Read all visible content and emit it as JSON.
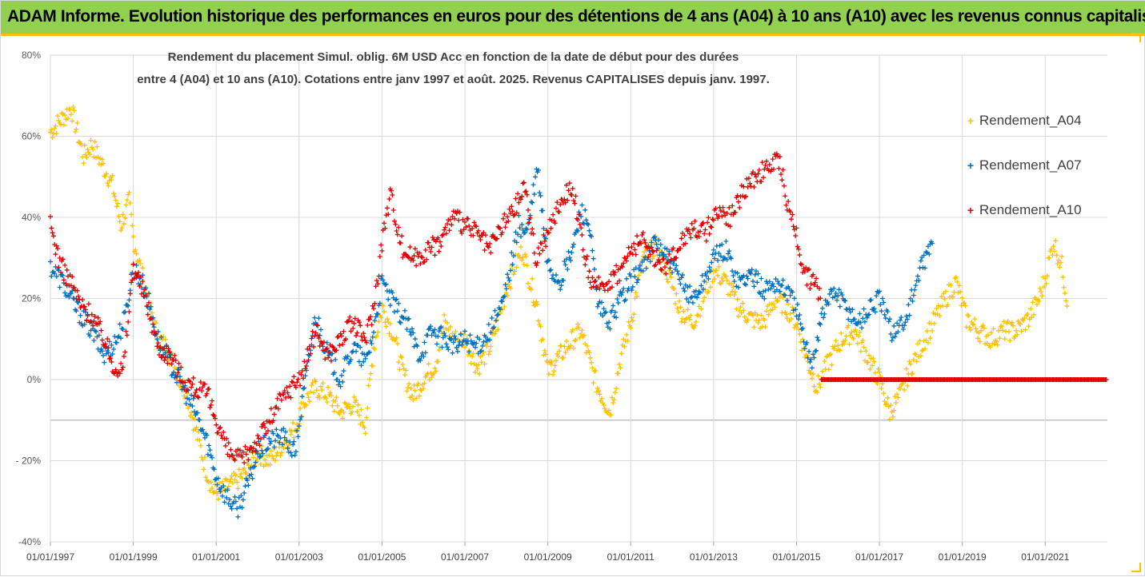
{
  "banner": {
    "title": "ADAM Informe. Evolution historique des performances en euros pour des détentions de 4 ans (A04) à 10 ans (A10) avec les revenus connus capitalisés"
  },
  "chart_data": {
    "type": "scatter",
    "title_line1": "Rendement du placement Simul. oblig. 6M USD Acc en fonction de la date de début pour des durées",
    "title_line2": "entre 4 (A04) et 10 ans (A10). Cotations entre janv 1997 et août. 2025. Revenus CAPITALISES depuis janv. 1997.",
    "xlabel": "",
    "ylabel": "",
    "x_range": [
      "1997-01-01",
      "2022-06-30"
    ],
    "y_range": [
      -40,
      80
    ],
    "y_unit": "%",
    "y_ticks": [
      "80%",
      "60%",
      "40%",
      "20%",
      "0%",
      "- 20%",
      "-40%"
    ],
    "y_tick_values": [
      80,
      60,
      40,
      20,
      0,
      -20,
      -40
    ],
    "x_ticks": [
      "01/01/1997",
      "01/01/1999",
      "01/01/2001",
      "01/01/2003",
      "01/01/2005",
      "01/01/2007",
      "01/01/2009",
      "01/01/2011",
      "01/01/2013",
      "01/01/2015",
      "01/01/2017",
      "01/01/2019",
      "01/01/2021"
    ],
    "x_tick_values": [
      1997,
      1999,
      2001,
      2003,
      2005,
      2007,
      2009,
      2011,
      2013,
      2015,
      2017,
      2019,
      2021
    ],
    "grid": "horizontal",
    "legend_position": "right",
    "series": [
      {
        "name": "Rendement_A04",
        "color": "#ffc000",
        "x": [
          1997.0,
          1997.25,
          1997.5,
          1997.8,
          1998.0,
          1998.3,
          1998.5,
          1998.7,
          1998.9,
          1999.0,
          1999.3,
          1999.6,
          1999.8,
          2000.0,
          2000.3,
          2000.5,
          2000.75,
          2000.95,
          2001.2,
          2001.5,
          2001.8,
          2002.0,
          2002.3,
          2002.6,
          2002.9,
          2003.1,
          2003.4,
          2003.7,
          2004.0,
          2004.3,
          2004.6,
          2004.8,
          2005.0,
          2005.25,
          2005.5,
          2005.75,
          2006.0,
          2006.3,
          2006.5,
          2006.75,
          2007.0,
          2007.3,
          2007.6,
          2007.8,
          2008.0,
          2008.2,
          2008.4,
          2008.55,
          2008.75,
          2009.0,
          2009.3,
          2009.6,
          2009.8,
          2010.0,
          2010.2,
          2010.5,
          2010.75,
          2011.0,
          2011.3,
          2011.6,
          2011.9,
          2012.2,
          2012.5,
          2012.75,
          2013.0,
          2013.3,
          2013.6,
          2013.9,
          2014.2,
          2014.5,
          2014.75,
          2015.0,
          2015.25,
          2015.5,
          2015.8,
          2016.1,
          2016.4,
          2016.7,
          2017.0,
          2017.25,
          2017.5,
          2017.75,
          2018.0,
          2018.3,
          2018.6,
          2018.85,
          2019.1,
          2019.4,
          2019.7,
          2020.0,
          2020.3,
          2020.6,
          2020.85,
          2021.0,
          2021.2,
          2021.4,
          2021.55
        ],
        "values": [
          61,
          64,
          67,
          55,
          58,
          52,
          48,
          38,
          44,
          35,
          22,
          10,
          8,
          3,
          -4,
          -12,
          -22,
          -28,
          -27,
          -25,
          -22,
          -18,
          -20,
          -16,
          -12,
          -6,
          -2,
          -4,
          -8,
          -6,
          -11,
          8,
          18,
          12,
          2,
          -4,
          0,
          4,
          14,
          10,
          10,
          3,
          8,
          14,
          22,
          28,
          32,
          25,
          18,
          2,
          6,
          10,
          12,
          5,
          -2,
          -8,
          5,
          14,
          30,
          33,
          26,
          17,
          14,
          20,
          27,
          24,
          18,
          15,
          14,
          20,
          18,
          14,
          5,
          -2,
          5,
          10,
          12,
          6,
          0,
          -8,
          -4,
          3,
          8,
          14,
          20,
          24,
          15,
          12,
          10,
          12,
          12,
          15,
          20,
          25,
          34,
          28,
          18
        ]
      },
      {
        "name": "Rendement_A07",
        "color": "#0070c0",
        "x": [
          1997.0,
          1997.3,
          1997.6,
          1998.0,
          1998.3,
          1998.6,
          1998.8,
          1999.0,
          1999.3,
          1999.6,
          1999.9,
          2000.2,
          2000.5,
          2000.8,
          2001.0,
          2001.2,
          2001.5,
          2001.8,
          2002.0,
          2002.3,
          2002.6,
          2002.9,
          2003.1,
          2003.4,
          2003.7,
          2004.0,
          2004.3,
          2004.6,
          2004.8,
          2005.0,
          2005.3,
          2005.6,
          2005.9,
          2006.2,
          2006.5,
          2006.8,
          2007.0,
          2007.3,
          2007.6,
          2007.9,
          2008.1,
          2008.3,
          2008.5,
          2008.75,
          2009.0,
          2009.3,
          2009.6,
          2009.8,
          2010.0,
          2010.2,
          2010.5,
          2010.75,
          2011.0,
          2011.3,
          2011.6,
          2011.9,
          2012.2,
          2012.5,
          2012.75,
          2013.0,
          2013.3,
          2013.6,
          2013.9,
          2014.2,
          2014.5,
          2014.75,
          2015.0,
          2015.2,
          2015.4,
          2015.6,
          2015.9,
          2016.2,
          2016.5,
          2016.8,
          2017.0,
          2017.3,
          2017.6,
          2017.9,
          2018.1,
          2018.3
        ],
        "values": [
          28,
          24,
          18,
          12,
          6,
          10,
          15,
          28,
          22,
          10,
          4,
          -2,
          -8,
          -16,
          -24,
          -28,
          -32,
          -25,
          -18,
          -15,
          -14,
          -18,
          -4,
          16,
          6,
          0,
          8,
          4,
          12,
          24,
          18,
          14,
          6,
          12,
          10,
          8,
          10,
          8,
          12,
          18,
          28,
          38,
          36,
          52,
          28,
          24,
          32,
          42,
          38,
          18,
          14,
          20,
          24,
          28,
          34,
          30,
          24,
          20,
          24,
          30,
          32,
          24,
          26,
          22,
          24,
          22,
          18,
          8,
          5,
          16,
          22,
          18,
          14,
          18,
          20,
          12,
          14,
          24,
          30,
          34
        ]
      },
      {
        "name": "Rendement_A10",
        "color": "#e00000",
        "x": [
          1997.0,
          1997.25,
          1997.5,
          1997.75,
          1998.0,
          1998.3,
          1998.5,
          1998.75,
          1999.0,
          1999.3,
          1999.6,
          1999.9,
          2000.2,
          2000.5,
          2000.8,
          2001.0,
          2001.3,
          2001.6,
          2001.9,
          2002.2,
          2002.5,
          2002.8,
          2003.1,
          2003.4,
          2003.7,
          2004.0,
          2004.3,
          2004.6,
          2004.8,
          2005.0,
          2005.2,
          2005.5,
          2005.8,
          2006.1,
          2006.4,
          2006.7,
          2007.0,
          2007.3,
          2007.6,
          2007.9,
          2008.2,
          2008.45,
          2008.7,
          2009.0,
          2009.3,
          2009.6,
          2009.85,
          2010.1,
          2010.4,
          2010.7,
          2011.0,
          2011.3,
          2011.6,
          2011.9,
          2012.2,
          2012.5,
          2012.8,
          2013.1,
          2013.4,
          2013.7,
          2014.0,
          2014.3,
          2014.6,
          2014.8,
          2015.0,
          2015.2,
          2015.4,
          2015.6
        ],
        "values": [
          38,
          28,
          24,
          18,
          16,
          10,
          4,
          2,
          28,
          20,
          8,
          6,
          0,
          -2,
          -4,
          -10,
          -18,
          -20,
          -16,
          -12,
          -6,
          -2,
          2,
          12,
          6,
          10,
          14,
          10,
          18,
          34,
          46,
          32,
          30,
          32,
          34,
          40,
          38,
          36,
          32,
          38,
          42,
          48,
          30,
          36,
          44,
          48,
          32,
          22,
          24,
          26,
          32,
          34,
          30,
          28,
          34,
          38,
          36,
          42,
          40,
          46,
          50,
          52,
          54,
          42,
          36,
          26,
          24,
          20
        ]
      },
      {
        "name": "",
        "color": "#e00000",
        "x": [
          2015.6,
          2022.5
        ],
        "values": [
          0,
          0
        ]
      }
    ]
  },
  "legend": [
    {
      "label": "Rendement_A04",
      "color": "#ffc000"
    },
    {
      "label": "Rendement_A07",
      "color": "#0070c0"
    },
    {
      "label": "Rendement_A10",
      "color": "#e00000"
    }
  ]
}
